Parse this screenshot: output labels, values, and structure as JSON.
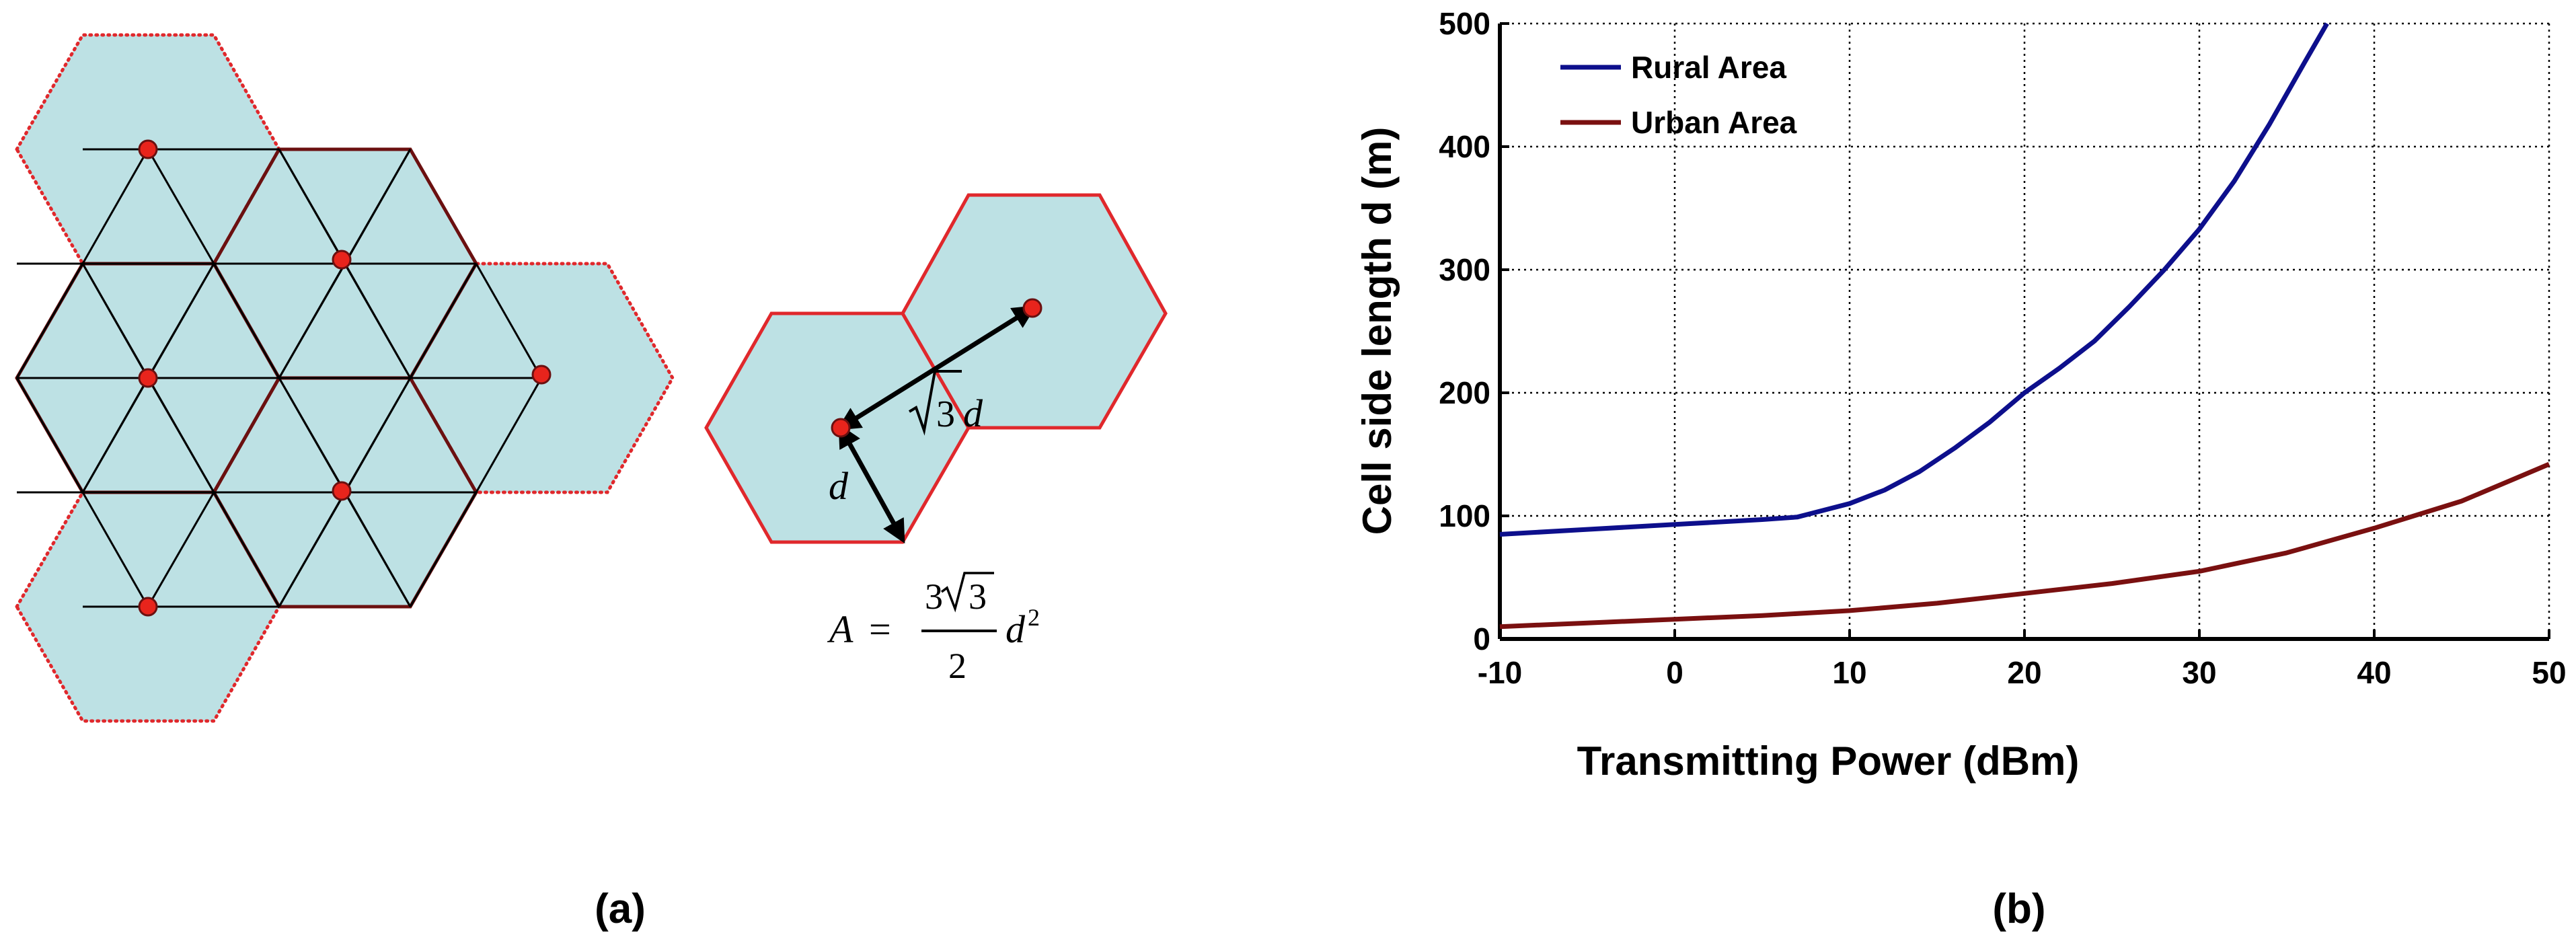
{
  "panel_a": {
    "label": "(a)",
    "formula": {
      "lhs": "A",
      "equals": "=",
      "numerator_coef": "3",
      "numerator_root": "3",
      "denominator": "2",
      "variable": "d",
      "exponent": "2"
    },
    "distance_labels": {
      "neighbor_distance_root": "3",
      "neighbor_distance_var": "d",
      "side_label": "d"
    },
    "colors": {
      "hex_fill": "#bde1e4",
      "dotted_border": "#e0282c",
      "solid_border": "#6b1010",
      "cell_node": "#e8241c",
      "triangle_lines": "#000000"
    }
  },
  "panel_b": {
    "label": "(b)"
  },
  "chart_data": {
    "type": "line",
    "xlabel": "Transmitting Power (dBm)",
    "ylabel": "Cell side length d (m)",
    "xlim": [
      -10,
      50
    ],
    "ylim": [
      0,
      500
    ],
    "xticks": [
      -10,
      0,
      10,
      20,
      30,
      40,
      50
    ],
    "yticks": [
      0,
      100,
      200,
      300,
      400,
      500
    ],
    "grid": true,
    "legend_position": "top-left",
    "series": [
      {
        "name": "Rural Area",
        "color": "#0d0f8c",
        "x": [
          -10,
          -5,
          0,
          5,
          7,
          10,
          12,
          14,
          16,
          18,
          20,
          22,
          24,
          26,
          28,
          30,
          32,
          34,
          36,
          37.3
        ],
        "y": [
          85,
          89,
          93,
          97,
          99,
          110,
          121,
          136,
          155,
          176,
          200,
          220,
          242,
          270,
          300,
          333,
          372,
          418,
          468,
          500
        ]
      },
      {
        "name": "Urban Area",
        "color": "#7a1010",
        "x": [
          -10,
          -5,
          0,
          5,
          10,
          15,
          20,
          25,
          30,
          35,
          40,
          45,
          48,
          50
        ],
        "y": [
          10,
          13,
          16,
          19,
          23,
          29,
          37,
          45,
          55,
          70,
          90,
          112,
          130,
          142
        ]
      }
    ]
  }
}
